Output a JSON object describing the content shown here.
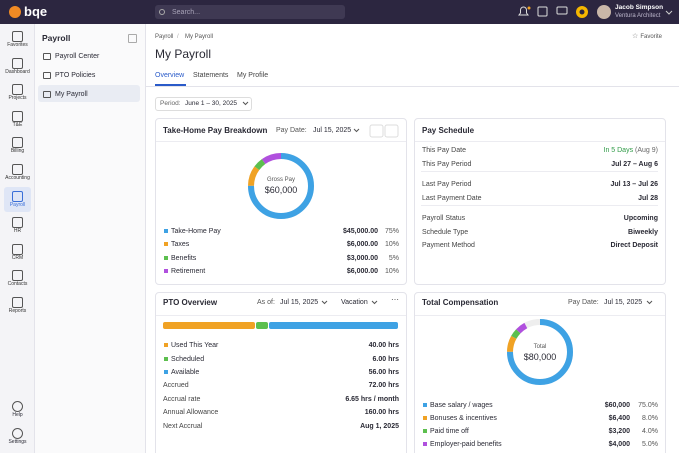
{
  "topbar": {
    "logo": "bqe",
    "search_placeholder": "Search...",
    "user_name": "Jacob Simpson",
    "user_role": "Ventura Architect"
  },
  "sidebar": {
    "items": [
      "Favorites",
      "Dashboard",
      "Projects",
      "T&E",
      "Billing",
      "Accounting",
      "Payroll",
      "HR",
      "CRM",
      "Contacts",
      "Reports"
    ],
    "bottom": [
      "Help",
      "Settings"
    ]
  },
  "subnav": {
    "title": "Payroll",
    "items": [
      "Payroll Center",
      "PTO Policies",
      "My Payroll"
    ]
  },
  "header": {
    "breadcrumbs": [
      "Payroll",
      "My Payroll"
    ],
    "title": "My Payroll",
    "favorite": "Favorite",
    "tabs": [
      "Overview",
      "Statements",
      "My Profile"
    ]
  },
  "period": {
    "label": "Period:",
    "value": "June 1 – 30, 2025"
  },
  "take_home": {
    "title": "Take-Home Pay Breakdown",
    "pay_date_label": "Pay Date:",
    "pay_date": "Jul 15, 2025",
    "center_label": "Gross Pay",
    "center_value": "$60,000",
    "rows": [
      {
        "name": "Take-Home Pay",
        "amount": "$45,000.00",
        "share": {
          "value": 75,
          "label": "75%"
        },
        "color": "#3ea2e4"
      },
      {
        "name": "Taxes",
        "amount": "$6,000.00",
        "share": {
          "value": 10,
          "label": "10%"
        },
        "color": "#f0a224"
      },
      {
        "name": "Benefits",
        "amount": "$3,000.00",
        "share": {
          "value": 5,
          "label": "5%"
        },
        "color": "#5cbf4e"
      },
      {
        "name": "Retirement",
        "amount": "$6,000.00",
        "share": {
          "value": 10,
          "label": "10%"
        },
        "color": "#b050de"
      }
    ]
  },
  "pay_schedule": {
    "title": "Pay Schedule",
    "groups": [
      [
        {
          "label": "This Pay Date",
          "value": "In 5 Days",
          "note": "(Aug 9)"
        },
        {
          "label": "This Pay Period",
          "value": "Jul 27 – Aug 6"
        }
      ],
      [
        {
          "label": "Last Pay Period",
          "value": "Jul 13 – Jul 26"
        },
        {
          "label": "Last Payment Date",
          "value": "Jul 28"
        }
      ],
      [
        {
          "label": "Payroll Status",
          "value": "Upcoming"
        },
        {
          "label": "Schedule Type",
          "value": "Biweekly"
        },
        {
          "label": "Payment Method",
          "value": "Direct Deposit"
        }
      ]
    ]
  },
  "pto": {
    "title": "PTO Overview",
    "as_of_label": "As of:",
    "as_of": "Jul 15, 2025",
    "type": "Vacation",
    "bars": [
      {
        "name": "Used This Year",
        "hours": {
          "value": 40,
          "label": "40.00 hrs"
        },
        "color": "#f0a224"
      },
      {
        "name": "Scheduled",
        "hours": {
          "value": 6,
          "label": "6.00 hrs"
        },
        "color": "#5cbf4e"
      },
      {
        "name": "Available",
        "hours": {
          "value": 56,
          "label": "56.00 hrs"
        },
        "color": "#3ea2e4"
      }
    ],
    "details": [
      {
        "label": "Accrued",
        "value": "72.00 hrs"
      },
      {
        "label": "Accrual rate",
        "value": "6.65 hrs / month"
      },
      {
        "label": "Annual Allowance",
        "value": "160.00 hrs"
      },
      {
        "label": "Next Accrual",
        "value": "Aug 1, 2025"
      }
    ]
  },
  "total_comp": {
    "title": "Total Compensation",
    "pay_date_label": "Pay Date:",
    "pay_date": "Jul 15, 2025",
    "center_label": "Total",
    "center_value": "$80,000",
    "rows": [
      {
        "name": "Base salary / wages",
        "amount": "$60,000",
        "share": {
          "value": 75,
          "label": "75.0%"
        },
        "color": "#3ea2e4"
      },
      {
        "name": "Bonuses & incentives",
        "amount": "$6,400",
        "share": {
          "value": 8,
          "label": "8.0%"
        },
        "color": "#f0a224"
      },
      {
        "name": "Paid time off",
        "amount": "$3,200",
        "share": {
          "value": 4,
          "label": "4.0%"
        },
        "color": "#5cbf4e"
      },
      {
        "name": "Employer-paid benefits",
        "amount": "$4,000",
        "share": {
          "value": 5,
          "label": "5.0%"
        },
        "color": "#b050de"
      }
    ]
  }
}
